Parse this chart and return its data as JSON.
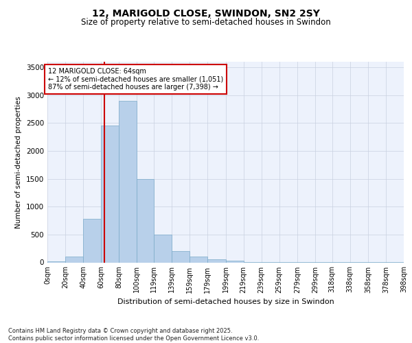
{
  "title1": "12, MARIGOLD CLOSE, SWINDON, SN2 2SY",
  "title2": "Size of property relative to semi-detached houses in Swindon",
  "xlabel": "Distribution of semi-detached houses by size in Swindon",
  "ylabel": "Number of semi-detached properties",
  "property_size": 64,
  "annotation_title": "12 MARIGOLD CLOSE: 64sqm",
  "annotation_line1": "← 12% of semi-detached houses are smaller (1,051)",
  "annotation_line2": "87% of semi-detached houses are larger (7,398) →",
  "footer1": "Contains HM Land Registry data © Crown copyright and database right 2025.",
  "footer2": "Contains public sector information licensed under the Open Government Licence v3.0.",
  "bins": [
    0,
    20,
    40,
    60,
    80,
    100,
    119,
    139,
    159,
    179,
    199,
    219,
    239,
    259,
    279,
    299,
    318,
    338,
    358,
    378,
    398
  ],
  "bin_labels": [
    "0sqm",
    "20sqm",
    "40sqm",
    "60sqm",
    "80sqm",
    "100sqm",
    "119sqm",
    "139sqm",
    "159sqm",
    "179sqm",
    "199sqm",
    "219sqm",
    "239sqm",
    "259sqm",
    "279sqm",
    "299sqm",
    "318sqm",
    "338sqm",
    "358sqm",
    "378sqm",
    "398sqm"
  ],
  "counts": [
    20,
    100,
    780,
    2450,
    2900,
    1500,
    500,
    200,
    100,
    60,
    30,
    10,
    5,
    5,
    3,
    3,
    2,
    2,
    2,
    2
  ],
  "bar_color": "#b8d0ea",
  "bar_edge_color": "#7aaac8",
  "vline_color": "#cc0000",
  "annotation_box_color": "#cc0000",
  "bg_color": "#edf2fc",
  "grid_color": "#c8d0e0",
  "ylim": [
    0,
    3600
  ],
  "yticks": [
    0,
    500,
    1000,
    1500,
    2000,
    2500,
    3000,
    3500
  ]
}
